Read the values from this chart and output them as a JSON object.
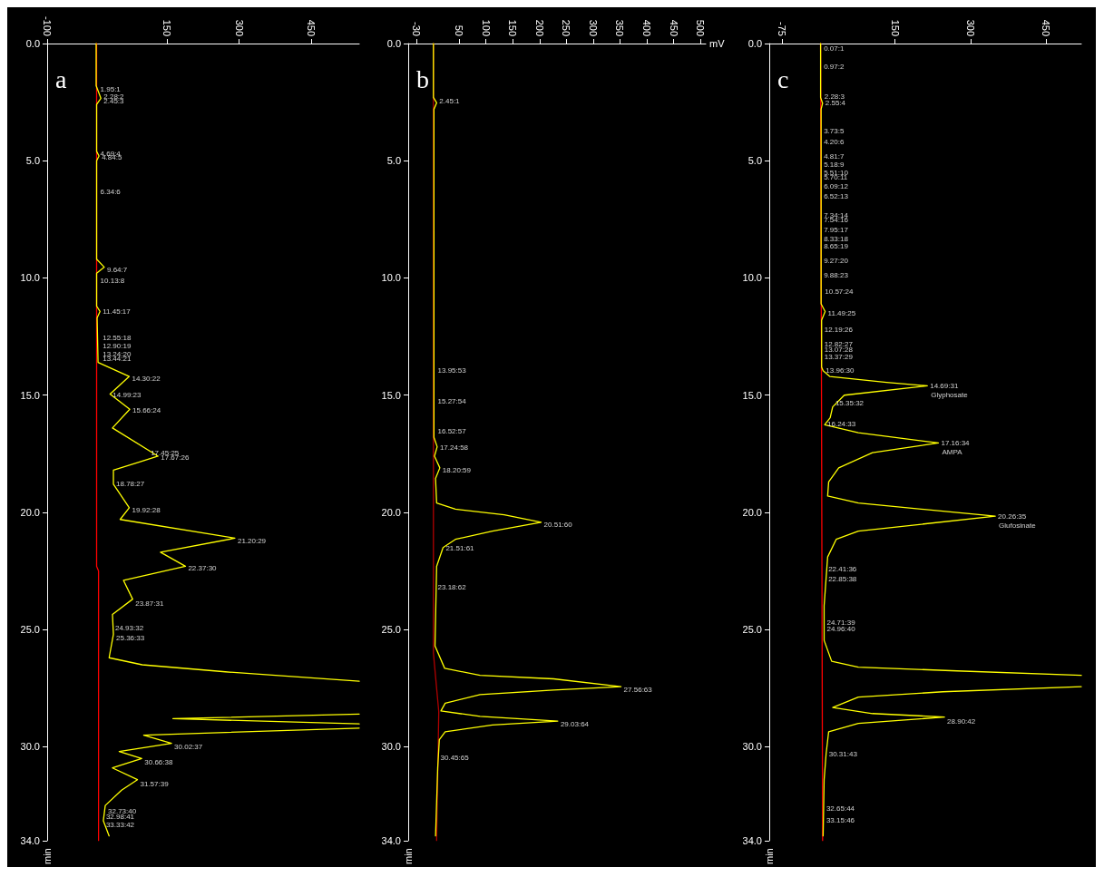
{
  "chart_data": [
    {
      "type": "line",
      "title": "a",
      "ylabel": "min",
      "xlim": [
        -100,
        550
      ],
      "xticks": [
        -100,
        150,
        300,
        450
      ],
      "ylim": [
        34,
        0
      ],
      "yticks": [
        {
          "value": 0,
          "label": "0.0"
        },
        {
          "value": 5,
          "label": "5.0"
        },
        {
          "value": 10,
          "label": "10.0"
        },
        {
          "value": 15,
          "label": "15.0"
        },
        {
          "value": 20,
          "label": "20.0"
        },
        {
          "value": 25,
          "label": "25.0"
        },
        {
          "value": 30,
          "label": "30.0"
        },
        {
          "value": 34,
          "label": "34.0"
        }
      ],
      "grid": false,
      "series": [
        {
          "color": "#ff0000",
          "x": [
            3,
            3,
            7,
            7
          ],
          "values": [
            0,
            22.3,
            22.5,
            34
          ]
        },
        {
          "color": "#ffff00",
          "x": [
            2,
            2,
            12,
            3,
            3,
            8,
            3,
            3,
            19,
            3,
            3,
            10,
            4,
            6,
            71,
            31,
            72,
            36,
            131,
            38,
            38,
            71,
            52,
            291,
            136,
            188,
            59,
            78,
            36,
            38,
            29,
            98,
            271,
            550,
            null,
            550,
            162,
            550,
            null,
            550,
            101,
            159,
            50,
            97,
            36,
            88,
            55,
            21,
            17,
            29
          ],
          "values": [
            0,
            1.8,
            2.34,
            2.6,
            4.6,
            4.8,
            5.0,
            9.2,
            9.54,
            9.8,
            11.2,
            11.43,
            11.7,
            13.6,
            14.2,
            14.95,
            15.6,
            16.4,
            17.6,
            18.2,
            18.8,
            19.8,
            20.3,
            21.1,
            21.7,
            22.3,
            22.9,
            23.7,
            24.35,
            25.2,
            26.2,
            26.5,
            26.8,
            27.2,
            null,
            28.6,
            28.8,
            29.02,
            null,
            29.2,
            29.5,
            29.85,
            30.2,
            30.5,
            30.9,
            31.4,
            31.85,
            32.5,
            33.15,
            33.8
          ]
        }
      ],
      "annotations": [
        {
          "text": "1.95:1",
          "x": 5,
          "y": 1.95
        },
        {
          "text": "2.28:2",
          "x": 12,
          "y": 2.28
        },
        {
          "text": "2.45:3",
          "x": 12,
          "y": 2.45
        },
        {
          "text": "4.69:4",
          "x": 5,
          "y": 4.69
        },
        {
          "text": "4.84:5",
          "x": 8,
          "y": 4.84
        },
        {
          "text": "6.34:6",
          "x": 5,
          "y": 6.34
        },
        {
          "text": "9.64:7",
          "x": 19,
          "y": 9.64
        },
        {
          "text": "10.13:8",
          "x": 5,
          "y": 10.13
        },
        {
          "text": "11.45:17",
          "x": 10,
          "y": 11.45
        },
        {
          "text": "12.55:18",
          "x": 10,
          "y": 12.55
        },
        {
          "text": "12.90:19",
          "x": 10,
          "y": 12.9
        },
        {
          "text": "13.24:20",
          "x": 10,
          "y": 13.24
        },
        {
          "text": "13.44:21",
          "x": 10,
          "y": 13.44
        },
        {
          "text": "14.30:22",
          "x": 71,
          "y": 14.3
        },
        {
          "text": "14.99:23",
          "x": 31,
          "y": 14.99
        },
        {
          "text": "15.66:24",
          "x": 72,
          "y": 15.66
        },
        {
          "text": "17.45:25",
          "x": 110,
          "y": 17.45
        },
        {
          "text": "17.67:26",
          "x": 131,
          "y": 17.67
        },
        {
          "text": "18.78:27",
          "x": 38,
          "y": 18.78
        },
        {
          "text": "19.92:28",
          "x": 71,
          "y": 19.92
        },
        {
          "text": "21.20:29",
          "x": 291,
          "y": 21.2
        },
        {
          "text": "22.37:30",
          "x": 188,
          "y": 22.37
        },
        {
          "text": "23.87:31",
          "x": 78,
          "y": 23.87
        },
        {
          "text": "24.93:32",
          "x": 36,
          "y": 24.93
        },
        {
          "text": "25.36:33",
          "x": 38,
          "y": 25.36
        },
        {
          "text": "30.02:37",
          "x": 159,
          "y": 30.02
        },
        {
          "text": "30.66:38",
          "x": 97,
          "y": 30.66
        },
        {
          "text": "31.57:39",
          "x": 88,
          "y": 31.57
        },
        {
          "text": "32.73:40",
          "x": 21,
          "y": 32.73
        },
        {
          "text": "32.98:41",
          "x": 17,
          "y": 32.98
        },
        {
          "text": "33.33:42",
          "x": 17,
          "y": 33.33
        }
      ]
    },
    {
      "type": "line",
      "title": "b",
      "xlabel": "mV",
      "ylabel": "min",
      "xlim": [
        -45,
        510
      ],
      "xticks": [
        -30,
        50,
        100,
        150,
        200,
        250,
        300,
        350,
        400,
        450,
        500
      ],
      "ylim": [
        34,
        0
      ],
      "yticks": [
        {
          "value": 0,
          "label": "0.0"
        },
        {
          "value": 5,
          "label": "5.0"
        },
        {
          "value": 10,
          "label": "10.0"
        },
        {
          "value": 15,
          "label": "15.0"
        },
        {
          "value": 20,
          "label": "20.0"
        },
        {
          "value": 25,
          "label": "25.0"
        },
        {
          "value": 30,
          "label": "30.0"
        },
        {
          "value": 34,
          "label": "34.0"
        }
      ],
      "grid": false,
      "series": [
        {
          "color": "#b00000",
          "x": [
            2,
            2,
            12,
            8
          ],
          "values": [
            0,
            26,
            28.5,
            34
          ]
        },
        {
          "color": "#ffff00",
          "x": [
            2,
            2,
            8,
            3,
            3,
            9,
            4,
            14,
            6,
            8,
            43,
            134,
            203,
            112,
            43,
            20,
            8,
            5,
            23,
            89,
            226,
            352,
            226,
            89,
            24,
            16,
            89,
            234,
            112,
            24,
            13,
            10,
            6
          ],
          "values": [
            0,
            2.3,
            2.53,
            2.8,
            16.8,
            17.2,
            17.6,
            18.1,
            18.55,
            19.6,
            19.86,
            20.1,
            20.42,
            20.8,
            21.15,
            21.5,
            22.3,
            25.7,
            26.65,
            26.95,
            27.1,
            27.43,
            27.58,
            27.77,
            28.14,
            28.47,
            28.7,
            28.9,
            29.07,
            29.36,
            29.7,
            30.9,
            33.8
          ]
        }
      ],
      "annotations": [
        {
          "text": "2.45:1",
          "x": 8,
          "y": 2.45
        },
        {
          "text": "13.95:53",
          "x": 5,
          "y": 13.95
        },
        {
          "text": "15.27:54",
          "x": 5,
          "y": 15.27
        },
        {
          "text": "16.52:57",
          "x": 5,
          "y": 16.52
        },
        {
          "text": "17.24:58",
          "x": 9,
          "y": 17.24
        },
        {
          "text": "18.20:59",
          "x": 14,
          "y": 18.2
        },
        {
          "text": "20.51:60",
          "x": 203,
          "y": 20.51
        },
        {
          "text": "21.51:61",
          "x": 20,
          "y": 21.51
        },
        {
          "text": "23.18:62",
          "x": 5,
          "y": 23.18
        },
        {
          "text": "27.56:63",
          "x": 352,
          "y": 27.56
        },
        {
          "text": "29.03:64",
          "x": 234,
          "y": 29.03
        },
        {
          "text": "30.45:65",
          "x": 10,
          "y": 30.45
        }
      ]
    },
    {
      "type": "line",
      "title": "c",
      "ylabel": "min",
      "xlim": [
        -100,
        520
      ],
      "xticks": [
        -75,
        150,
        300,
        450
      ],
      "ylim": [
        34,
        0
      ],
      "yticks": [
        {
          "value": 0,
          "label": "0.0"
        },
        {
          "value": 5,
          "label": "5.0"
        },
        {
          "value": 10,
          "label": "10.0"
        },
        {
          "value": 15,
          "label": "15.0"
        },
        {
          "value": 20,
          "label": "20.0"
        },
        {
          "value": 25,
          "label": "25.0"
        },
        {
          "value": 30,
          "label": "30.0"
        },
        {
          "value": 34,
          "label": "34.0"
        }
      ],
      "grid": false,
      "series": [
        {
          "color": "#ff0000",
          "x": [
            2,
            6
          ],
          "values": [
            0,
            34
          ]
        },
        {
          "color": "#ffff00",
          "x": [
            2,
            2,
            6,
            3,
            3,
            11,
            4,
            4,
            7,
            20,
            133,
            214,
            49,
            26,
            21,
            10,
            77,
            236,
            105,
            38,
            18,
            16,
            77,
            349,
            77,
            33,
            16,
            9,
            9,
            24,
            77,
            273,
            520,
            null,
            520,
            245,
            77,
            26,
            105,
            248,
            77,
            18,
            13,
            9,
            7
          ],
          "values": [
            0,
            2.3,
            2.55,
            2.8,
            11.1,
            11.43,
            11.8,
            13.8,
            13.96,
            14.2,
            14.45,
            14.6,
            15.0,
            15.5,
            15.96,
            16.26,
            16.6,
            17.04,
            17.45,
            18.1,
            18.7,
            19.3,
            19.6,
            20.16,
            20.8,
            21.15,
            21.9,
            23.98,
            25.46,
            26.35,
            26.6,
            26.76,
            26.95,
            null,
            27.43,
            27.65,
            27.88,
            28.32,
            28.58,
            28.73,
            29.0,
            29.36,
            30.29,
            31.4,
            33.8
          ]
        }
      ],
      "annotations": [
        {
          "text": "0.07:1",
          "x": 3,
          "y": 0.07
        },
        {
          "text": "0.97:2",
          "x": 3,
          "y": 0.97
        },
        {
          "text": "2.28:3",
          "x": 4,
          "y": 2.28
        },
        {
          "text": "2.55:4",
          "x": 6,
          "y": 2.55
        },
        {
          "text": "3.73:5",
          "x": 3,
          "y": 3.73
        },
        {
          "text": "4.20:6",
          "x": 3,
          "y": 4.2
        },
        {
          "text": "4.81:7",
          "x": 3,
          "y": 4.81
        },
        {
          "text": "5.18:9",
          "x": 3,
          "y": 5.18
        },
        {
          "text": "5.51:10",
          "x": 3,
          "y": 5.51
        },
        {
          "text": "5.70:11",
          "x": 3,
          "y": 5.7
        },
        {
          "text": "6.09:12",
          "x": 3,
          "y": 6.09
        },
        {
          "text": "6.52:13",
          "x": 3,
          "y": 6.52
        },
        {
          "text": "7.34:14",
          "x": 3,
          "y": 7.34
        },
        {
          "text": "7.54:16",
          "x": 3,
          "y": 7.54
        },
        {
          "text": "7.95:17",
          "x": 3,
          "y": 7.95
        },
        {
          "text": "8.33:18",
          "x": 3,
          "y": 8.33
        },
        {
          "text": "8.65:19",
          "x": 3,
          "y": 8.65
        },
        {
          "text": "9.27:20",
          "x": 3,
          "y": 9.27
        },
        {
          "text": "9.88:23",
          "x": 3,
          "y": 9.88
        },
        {
          "text": "10.57:24",
          "x": 5,
          "y": 10.57
        },
        {
          "text": "11.49:25",
          "x": 11,
          "y": 11.49
        },
        {
          "text": "12.19:26",
          "x": 4,
          "y": 12.19
        },
        {
          "text": "12.82:27",
          "x": 4,
          "y": 12.82
        },
        {
          "text": "13.07:28",
          "x": 4,
          "y": 13.07
        },
        {
          "text": "13.37:29",
          "x": 4,
          "y": 13.37
        },
        {
          "text": "13.96:30",
          "x": 7,
          "y": 13.96
        },
        {
          "text": "14.69:31",
          "x": 214,
          "y": 14.6
        },
        {
          "text": "Glyphosate",
          "x": 214,
          "y": 14.6
        },
        {
          "text": "15.35:32",
          "x": 26,
          "y": 15.35
        },
        {
          "text": "16.24:33",
          "x": 10,
          "y": 16.24
        },
        {
          "text": "17.16:34",
          "x": 236,
          "y": 17.04
        },
        {
          "text": "AMPA",
          "x": 236,
          "y": 17.04
        },
        {
          "text": "20.26:35",
          "x": 349,
          "y": 20.16
        },
        {
          "text": "Glufosinate",
          "x": 349,
          "y": 20.16
        },
        {
          "text": "22.41:36",
          "x": 12,
          "y": 22.41
        },
        {
          "text": "22.85:38",
          "x": 12,
          "y": 22.85
        },
        {
          "text": "24.71:39",
          "x": 9,
          "y": 24.71
        },
        {
          "text": "24.96:40",
          "x": 9,
          "y": 24.96
        },
        {
          "text": "28.90:42",
          "x": 248,
          "y": 28.9
        },
        {
          "text": "30.31:43",
          "x": 13,
          "y": 30.31
        },
        {
          "text": "32.65:44",
          "x": 8,
          "y": 32.65
        },
        {
          "text": "33.15:46",
          "x": 8,
          "y": 33.15
        }
      ]
    }
  ]
}
